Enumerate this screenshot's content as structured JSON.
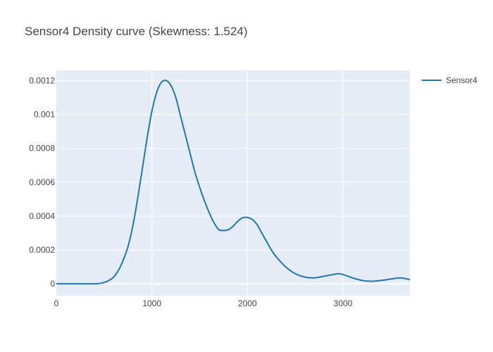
{
  "chart_data": {
    "type": "line",
    "title": "Sensor4 Density curve (Skewness: 1.524)",
    "xlabel": "",
    "ylabel": "",
    "xlim": [
      0,
      3700
    ],
    "ylim": [
      -7e-05,
      0.00126
    ],
    "x_ticks": [
      0,
      1000,
      2000,
      3000
    ],
    "x_tick_labels": [
      "0",
      "1000",
      "2000",
      "3000"
    ],
    "y_ticks": [
      0,
      0.0002,
      0.0004,
      0.0006,
      0.0008,
      0.001,
      0.0012
    ],
    "y_tick_labels": [
      "0",
      "0.0002",
      "0.0004",
      "0.0006",
      "0.0008",
      "0.001",
      "0.0012"
    ],
    "grid": true,
    "legend_position": "top-right",
    "colors": {
      "plot_bg": "#e5ecf6",
      "grid": "#ffffff",
      "series": "#1f77b4",
      "text": "#444444"
    },
    "series": [
      {
        "name": "Sensor4",
        "x": [
          0,
          100,
          200,
          300,
          400,
          450,
          500,
          550,
          600,
          650,
          700,
          750,
          800,
          850,
          900,
          950,
          1000,
          1050,
          1100,
          1150,
          1200,
          1250,
          1300,
          1350,
          1400,
          1450,
          1500,
          1550,
          1600,
          1650,
          1700,
          1750,
          1800,
          1850,
          1900,
          1950,
          2000,
          2050,
          2100,
          2150,
          2200,
          2250,
          2300,
          2400,
          2500,
          2600,
          2700,
          2800,
          2900,
          2950,
          3000,
          3100,
          3200,
          3300,
          3400,
          3500,
          3600,
          3700
        ],
        "y": [
          0,
          0,
          0,
          0,
          0,
          2e-06,
          8e-06,
          2e-05,
          4e-05,
          8e-05,
          0.00014,
          0.00022,
          0.00034,
          0.0005,
          0.00068,
          0.00086,
          0.00102,
          0.00113,
          0.00119,
          0.0012,
          0.00117,
          0.0011,
          0.00099,
          0.00088,
          0.00077,
          0.00066,
          0.00057,
          0.00049,
          0.00042,
          0.00036,
          0.00032,
          0.000315,
          0.00032,
          0.00034,
          0.00037,
          0.00039,
          0.000392,
          0.00038,
          0.00035,
          0.0003,
          0.00025,
          0.0002,
          0.00016,
          0.0001,
          6e-05,
          4e-05,
          3.5e-05,
          4.5e-05,
          5.5e-05,
          6e-05,
          5.5e-05,
          3.5e-05,
          2e-05,
          1.5e-05,
          2e-05,
          2.8e-05,
          3.5e-05,
          2.5e-05
        ]
      }
    ]
  }
}
